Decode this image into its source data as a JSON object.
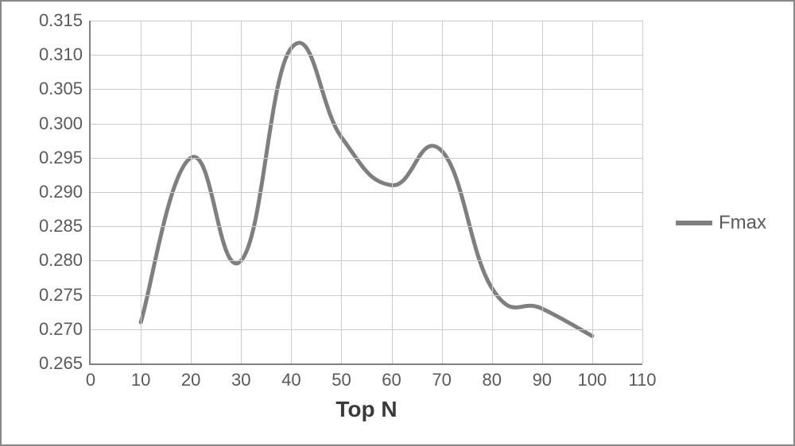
{
  "chart": {
    "type": "line",
    "xlabel": "Top N",
    "xlabel_fontsize": 28,
    "xlabel_fontweight": "bold",
    "tick_fontsize": 22,
    "axis_color": "#808080",
    "grid_color": "#cccccc",
    "background_color": "#ffffff",
    "frame_border_color": "#888888",
    "xlim": [
      0,
      110
    ],
    "ylim": [
      0.265,
      0.315
    ],
    "xtick_step": 10,
    "ytick_step": 0.005,
    "y_tick_decimals": 3,
    "series": [
      {
        "name": "Fmax",
        "color": "#7f7f7f",
        "line_width": 5,
        "smooth": true,
        "x": [
          10,
          20,
          30,
          40,
          50,
          60,
          70,
          80,
          90,
          100
        ],
        "y": [
          0.271,
          0.295,
          0.28,
          0.311,
          0.298,
          0.291,
          0.296,
          0.276,
          0.273,
          0.269
        ]
      }
    ],
    "legend": {
      "position": "right-middle",
      "fontsize": 24,
      "swatch_width": 46,
      "swatch_height": 6
    }
  }
}
